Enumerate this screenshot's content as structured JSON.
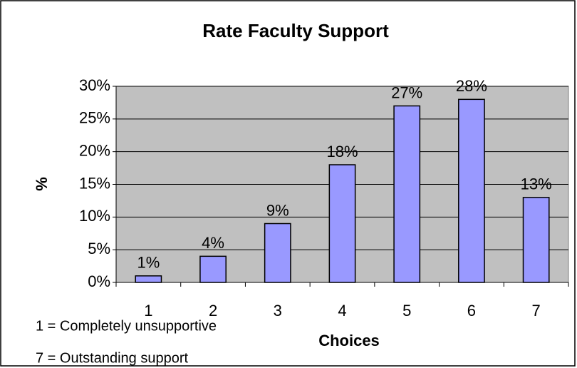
{
  "chart_data": {
    "type": "bar",
    "title": "Rate Faculty Support",
    "categories": [
      "1",
      "2",
      "3",
      "4",
      "5",
      "6",
      "7"
    ],
    "values": [
      1,
      4,
      9,
      18,
      27,
      28,
      13
    ],
    "value_labels": [
      "1%",
      "4%",
      "9%",
      "18%",
      "27%",
      "28%",
      "13%"
    ],
    "color": "#9999ff",
    "ylim": [
      0,
      30
    ],
    "yticks": [
      {
        "value": 0,
        "label": "0%"
      },
      {
        "value": 5,
        "label": "5%"
      },
      {
        "value": 10,
        "label": "10%"
      },
      {
        "value": 15,
        "label": "15%"
      },
      {
        "value": 20,
        "label": "20%"
      },
      {
        "value": 25,
        "label": "25%"
      },
      {
        "value": 30,
        "label": "30%"
      }
    ],
    "grid": true,
    "y_label": "%",
    "x_label": "Choices",
    "annotations": [
      "1 = Completely unsupportive",
      "7 = Outstanding support"
    ]
  }
}
